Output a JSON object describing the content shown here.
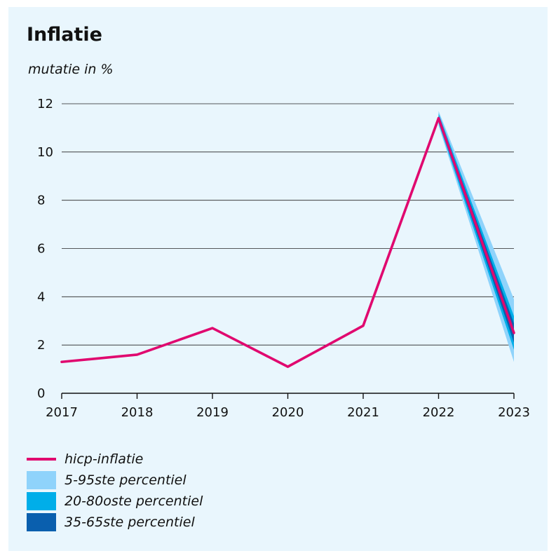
{
  "chart_data": {
    "type": "line",
    "title": "Inflatie",
    "ylabel": "mutatie in %",
    "ylim": [
      0,
      12
    ],
    "yticks": [
      0,
      2,
      4,
      6,
      8,
      10,
      12
    ],
    "categories": [
      "2017",
      "2018",
      "2019",
      "2020",
      "2021",
      "2022",
      "2023"
    ],
    "grid": true,
    "legend_position": "bottom-left",
    "series": [
      {
        "name": "hicp-inflatie",
        "values": [
          1.3,
          1.6,
          2.7,
          1.1,
          2.8,
          11.4,
          2.5
        ],
        "color": "#e0086f"
      }
    ],
    "bands": [
      {
        "name": "5-95ste percentiel",
        "color": "#8fd3fb",
        "x": [
          "2022",
          "2023"
        ],
        "lower": [
          11.1,
          1.3
        ],
        "upper": [
          11.7,
          3.9
        ]
      },
      {
        "name": "20-80oste percentiel",
        "color": "#00aee9",
        "x": [
          "2022",
          "2023"
        ],
        "lower": [
          11.2,
          1.8
        ],
        "upper": [
          11.6,
          3.2
        ]
      },
      {
        "name": "35-65ste percentiel",
        "color": "#0a5fae",
        "x": [
          "2022",
          "2023"
        ],
        "lower": [
          11.3,
          2.1
        ],
        "upper": [
          11.5,
          2.9
        ]
      }
    ]
  }
}
